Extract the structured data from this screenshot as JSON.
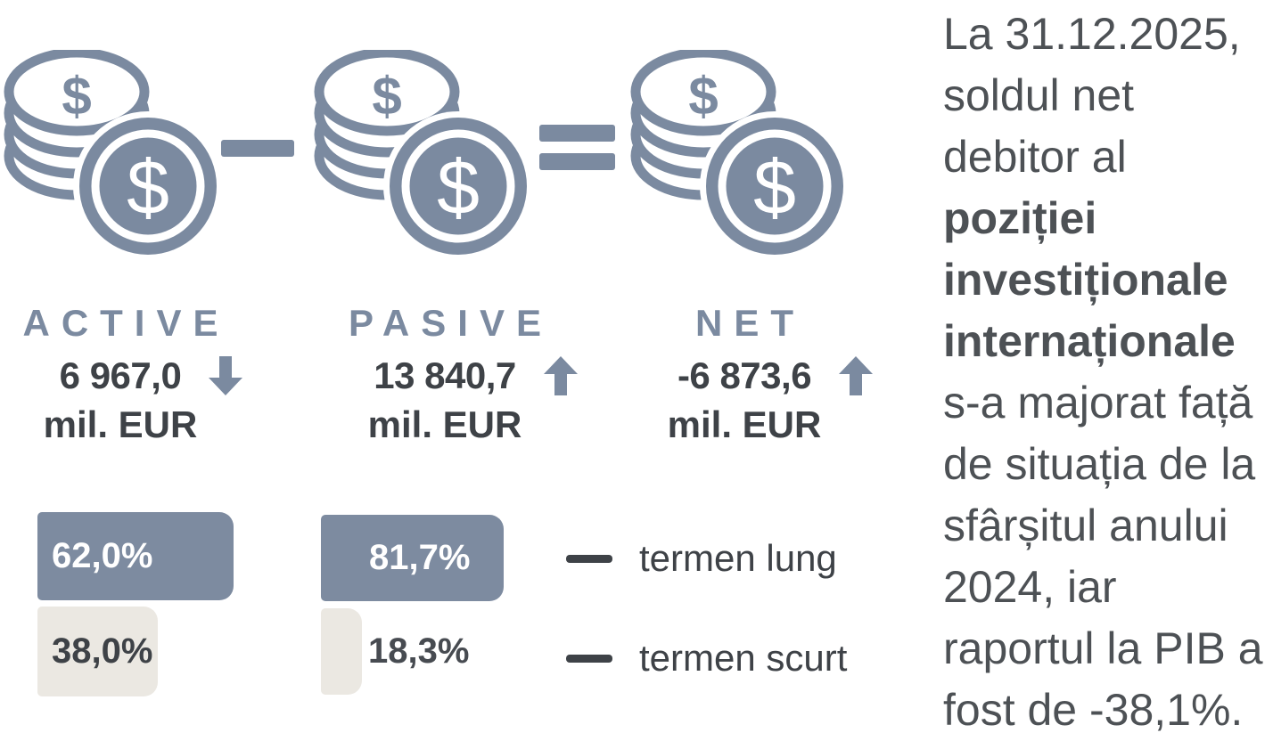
{
  "colors": {
    "slate": "#7b8aa0",
    "dark_text": "#3e4247",
    "cream": "#ebe8e2",
    "bar_lung_fill": "#7d8ba0",
    "paragraph_text": "#4d5155",
    "white": "#ffffff"
  },
  "equation": {
    "operators": [
      "minus",
      "equals"
    ],
    "columns": [
      {
        "label": "ACTIVE",
        "value": "6 967,0",
        "unit": "mil. EUR",
        "trend": "down"
      },
      {
        "label": "PASIVE",
        "value": "13 840,7",
        "unit": "mil. EUR",
        "trend": "up"
      },
      {
        "label": "NET",
        "value": "-6 873,6",
        "unit": "mil. EUR",
        "trend": "up"
      }
    ]
  },
  "bars": {
    "active": {
      "lung": "62,0%",
      "scurt": "38,0%"
    },
    "pasive": {
      "lung": "81,7%",
      "scurt": "18,3%"
    }
  },
  "legend": [
    {
      "label": "termen lung"
    },
    {
      "label": "termen scurt"
    }
  ],
  "paragraph": {
    "lines": [
      {
        "text": "La 31.12.2025,",
        "bold": false
      },
      {
        "text": "soldul net",
        "bold": false
      },
      {
        "text": "debitor al",
        "bold": false
      },
      {
        "text": "poziției",
        "bold": true
      },
      {
        "text": "investiționale",
        "bold": true
      },
      {
        "text": "internaționale",
        "bold": true
      },
      {
        "text": "s-a majorat față",
        "bold": false
      },
      {
        "text": "de situația de la",
        "bold": false
      },
      {
        "text": "sfârșitul anului",
        "bold": false
      },
      {
        "text": "2024, iar",
        "bold": false
      },
      {
        "text": "raportul la PIB a",
        "bold": false
      },
      {
        "text": "fost de -38,1%.",
        "bold": false
      }
    ]
  },
  "chart_data": {
    "type": "bar",
    "unit": "mil. EUR",
    "categories": [
      "ACTIVE",
      "PASIVE",
      "NET"
    ],
    "totals_mil_eur": [
      6967.0,
      13840.7,
      -6873.6
    ],
    "totals_display": [
      "6 967,0",
      "13 840,7",
      "-6 873,6"
    ],
    "trend_vs_previous": [
      "down",
      "up",
      "up"
    ],
    "series": [
      {
        "name": "termen lung",
        "values_pct": [
          62.0,
          81.7,
          null
        ]
      },
      {
        "name": "termen scurt",
        "values_pct": [
          38.0,
          18.3,
          null
        ]
      }
    ],
    "legend_position": "right",
    "annotation": "La 31.12.2025, soldul net debitor al poziției investiționale internaționale s-a majorat față de situația de la sfârșitul anului 2024, iar raportul la PIB a fost de -38,1%."
  }
}
